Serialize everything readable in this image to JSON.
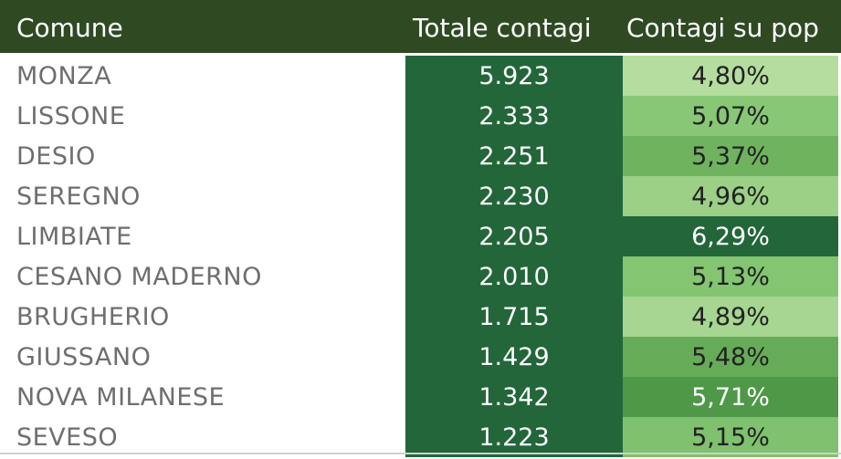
{
  "header": {
    "comune": "Comune",
    "totale": "Totale contagi",
    "percentuale": "Contagi su pop"
  },
  "colors": {
    "header_bg": "#2f4a23",
    "total_bg": "#22663a"
  },
  "rows": [
    {
      "comune": "MONZA",
      "totale": "5.923",
      "perc": "4,80%",
      "perc_bg": "#b4dd9f",
      "perc_fg": "#222222"
    },
    {
      "comune": "LISSONE",
      "totale": "2.333",
      "perc": "5,07%",
      "perc_bg": "#88c776",
      "perc_fg": "#222222"
    },
    {
      "comune": "DESIO",
      "totale": "2.251",
      "perc": "5,37%",
      "perc_bg": "#6fb35f",
      "perc_fg": "#222222"
    },
    {
      "comune": "SEREGNO",
      "totale": "2.230",
      "perc": "4,96%",
      "perc_bg": "#9bd086",
      "perc_fg": "#222222"
    },
    {
      "comune": "LIMBIATE",
      "totale": "2.205",
      "perc": "6,29%",
      "perc_bg": "#22663a",
      "perc_fg": "#ffffff"
    },
    {
      "comune": "CESANO MADERNO",
      "totale": "2.010",
      "perc": "5,13%",
      "perc_bg": "#83c571",
      "perc_fg": "#222222"
    },
    {
      "comune": "BRUGHERIO",
      "totale": "1.715",
      "perc": "4,89%",
      "perc_bg": "#a6d691",
      "perc_fg": "#222222"
    },
    {
      "comune": "GIUSSANO",
      "totale": "1.429",
      "perc": "5,48%",
      "perc_bg": "#66ac58",
      "perc_fg": "#222222"
    },
    {
      "comune": "NOVA MILANESE",
      "totale": "1.342",
      "perc": "5,71%",
      "perc_bg": "#4e9847",
      "perc_fg": "#ffffff"
    },
    {
      "comune": "SEVESO",
      "totale": "1.223",
      "perc": "5,15%",
      "perc_bg": "#7fc16e",
      "perc_fg": "#222222"
    }
  ]
}
